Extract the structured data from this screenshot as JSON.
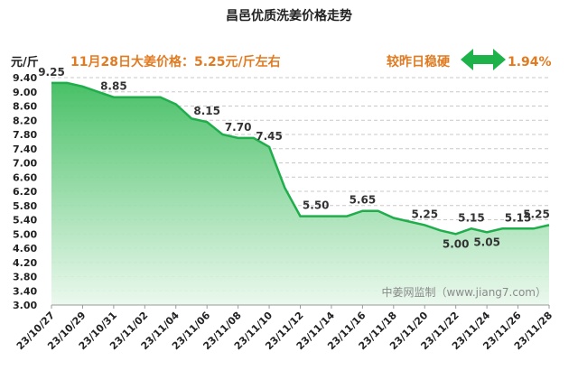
{
  "chart_data": {
    "type": "area",
    "title": "昌邑优质洗姜价格走势",
    "headline": "11月28日大姜价格：5.25元/斤左右",
    "compare_label": "较昨日稳硬",
    "compare_value": "1.94%",
    "ylabel": "元/斤",
    "ylim": [
      3.0,
      9.4
    ],
    "yticks": [
      "3.00",
      "3.40",
      "3.80",
      "4.20",
      "4.60",
      "5.00",
      "5.40",
      "5.80",
      "6.20",
      "6.60",
      "7.00",
      "7.40",
      "7.80",
      "8.20",
      "8.60",
      "9.00",
      "9.40"
    ],
    "xtick_labels": [
      "23/10/27",
      "23/10/29",
      "23/10/31",
      "23/11/02",
      "23/11/04",
      "23/11/06",
      "23/11/08",
      "23/11/10",
      "23/11/12",
      "23/11/14",
      "23/11/16",
      "23/11/18",
      "23/11/20",
      "23/11/22",
      "23/11/24",
      "23/11/26",
      "23/11/28"
    ],
    "x": [
      "23/10/27",
      "23/10/28",
      "23/10/29",
      "23/10/30",
      "23/10/31",
      "23/11/01",
      "23/11/02",
      "23/11/03",
      "23/11/04",
      "23/11/05",
      "23/11/06",
      "23/11/07",
      "23/11/08",
      "23/11/09",
      "23/11/10",
      "23/11/11",
      "23/11/12",
      "23/11/13",
      "23/11/14",
      "23/11/15",
      "23/11/16",
      "23/11/17",
      "23/11/18",
      "23/11/19",
      "23/11/20",
      "23/11/21",
      "23/11/22",
      "23/11/23",
      "23/11/24",
      "23/11/25",
      "23/11/26",
      "23/11/27",
      "23/11/28"
    ],
    "values": [
      9.25,
      9.25,
      9.15,
      9.0,
      8.85,
      8.85,
      8.85,
      8.85,
      8.65,
      8.25,
      8.15,
      7.8,
      7.7,
      7.7,
      7.45,
      6.3,
      5.5,
      5.5,
      5.5,
      5.5,
      5.65,
      5.65,
      5.45,
      5.35,
      5.25,
      5.1,
      5.0,
      5.15,
      5.05,
      5.15,
      5.15,
      5.15,
      5.25
    ],
    "data_labels": [
      {
        "x": "23/10/27",
        "text": "9.25"
      },
      {
        "x": "23/10/31",
        "text": "8.85"
      },
      {
        "x": "23/11/06",
        "text": "8.15"
      },
      {
        "x": "23/11/08",
        "text": "7.70"
      },
      {
        "x": "23/11/10",
        "text": "7.45"
      },
      {
        "x": "23/11/13",
        "text": "5.50"
      },
      {
        "x": "23/11/16",
        "text": "5.65"
      },
      {
        "x": "23/11/20",
        "text": "5.25"
      },
      {
        "x": "23/11/22",
        "text": "5.00"
      },
      {
        "x": "23/11/23",
        "text": "5.15"
      },
      {
        "x": "23/11/24",
        "text": "5.05"
      },
      {
        "x": "23/11/26",
        "text": "5.15"
      },
      {
        "x": "23/11/28",
        "text": "5.25"
      }
    ],
    "grid": true,
    "colors": {
      "line": "#1fae4b",
      "fill_top": "#4dc36b",
      "fill_bottom": "#e8f7ea",
      "accent": "#e07b22",
      "arrow": "#1db34a"
    },
    "watermark": "中姜网监制（www.jiang7.com）"
  }
}
